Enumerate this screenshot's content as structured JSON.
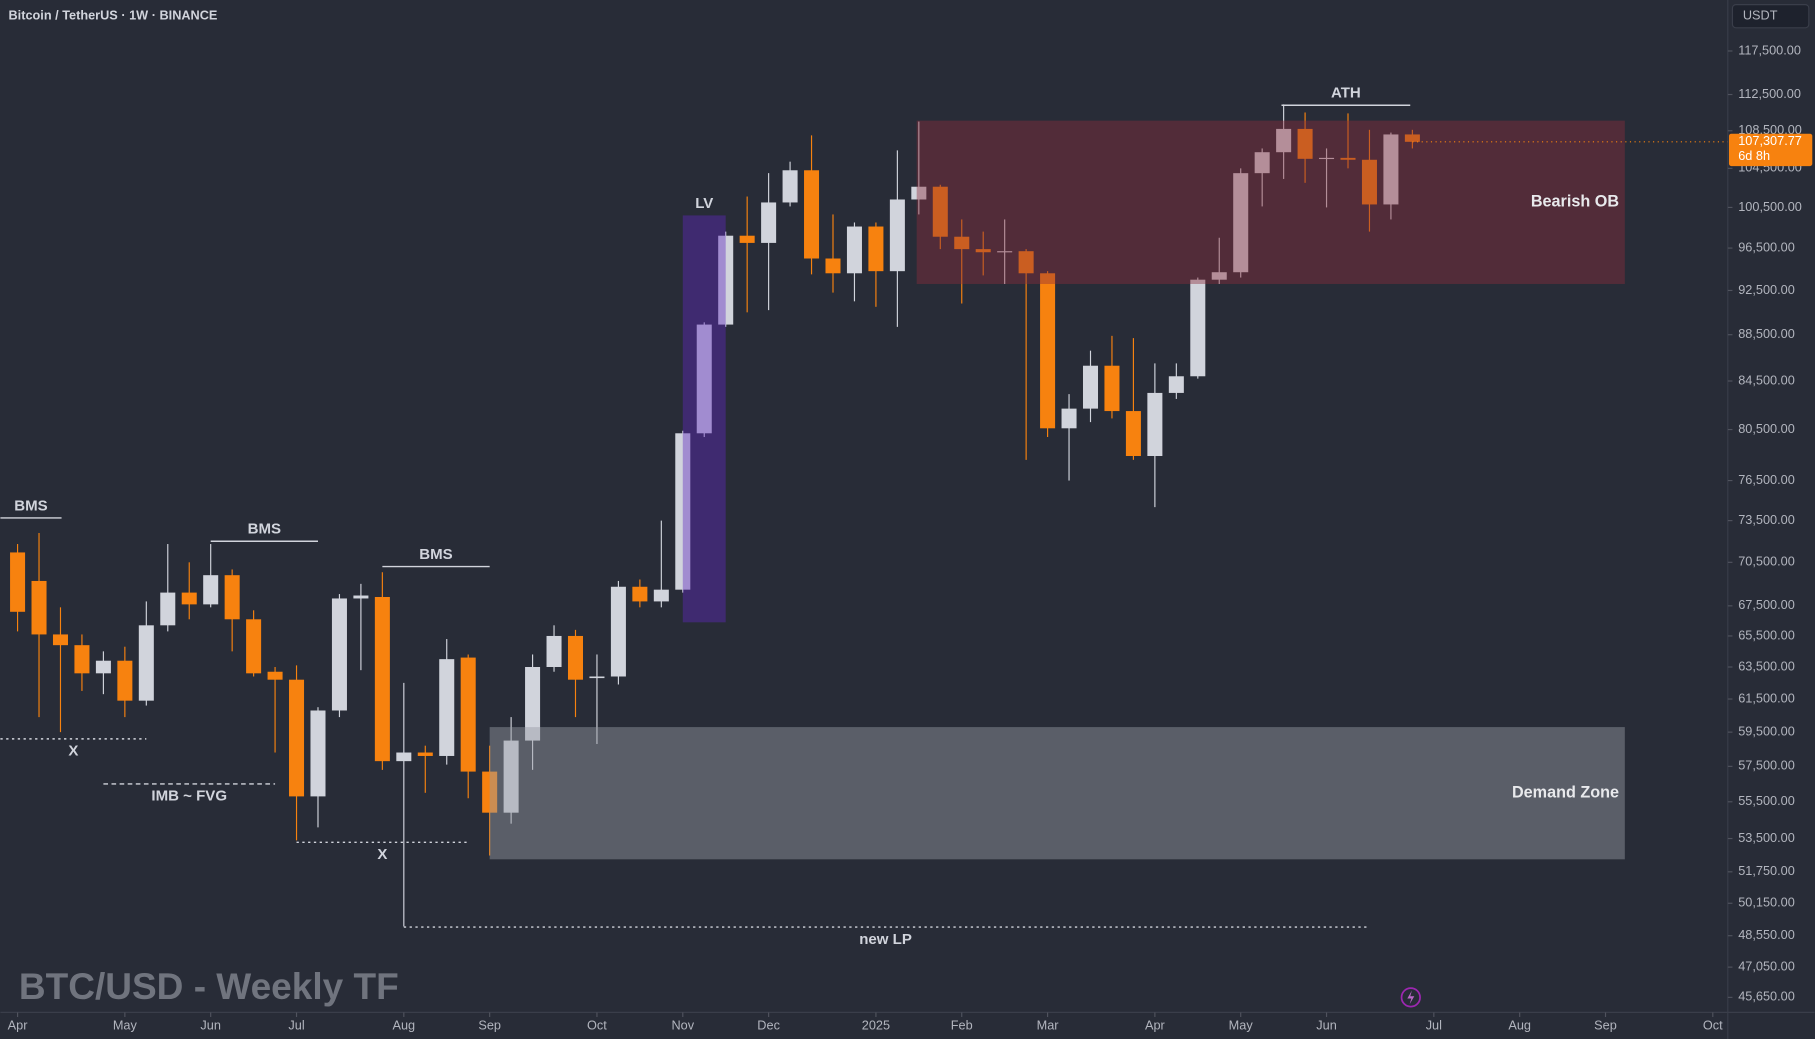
{
  "chart_data": {
    "type": "candlestick",
    "title": "Bitcoin / TetherUS · 1W · BINANCE",
    "watermark": "BTC/USD - Weekly TF",
    "currency": "USDT",
    "log": true,
    "up_color": "#d1d4dc",
    "down_color": "#f7820f",
    "ylim": [
      44970,
      123640
    ],
    "yticks": [
      {
        "value": 117500,
        "label": "117,500.00"
      },
      {
        "value": 112500,
        "label": "112,500.00"
      },
      {
        "value": 108500,
        "label": "108,500.00"
      },
      {
        "value": 104500,
        "label": "104,500.00"
      },
      {
        "value": 100500,
        "label": "100,500.00"
      },
      {
        "value": 96500,
        "label": "96,500.00"
      },
      {
        "value": 92500,
        "label": "92,500.00"
      },
      {
        "value": 88500,
        "label": "88,500.00"
      },
      {
        "value": 84500,
        "label": "84,500.00"
      },
      {
        "value": 80500,
        "label": "80,500.00"
      },
      {
        "value": 76500,
        "label": "76,500.00"
      },
      {
        "value": 73500,
        "label": "73,500.00"
      },
      {
        "value": 70500,
        "label": "70,500.00"
      },
      {
        "value": 67500,
        "label": "67,500.00"
      },
      {
        "value": 65500,
        "label": "65,500.00"
      },
      {
        "value": 63500,
        "label": "63,500.00"
      },
      {
        "value": 61500,
        "label": "61,500.00"
      },
      {
        "value": 59500,
        "label": "59,500.00"
      },
      {
        "value": 57500,
        "label": "57,500.00"
      },
      {
        "value": 55500,
        "label": "55,500.00"
      },
      {
        "value": 53500,
        "label": "53,500.00"
      },
      {
        "value": 51750,
        "label": "51,750.00"
      },
      {
        "value": 50150,
        "label": "50,150.00"
      },
      {
        "value": 48550,
        "label": "48,550.00"
      },
      {
        "value": 47050,
        "label": "47,050.00"
      },
      {
        "value": 45650,
        "label": "45,650.00"
      }
    ],
    "xlim": [
      -0.8,
      79.7
    ],
    "xticks": [
      {
        "value": 0,
        "label": "Apr"
      },
      {
        "value": 5,
        "label": "May"
      },
      {
        "value": 9,
        "label": "Jun"
      },
      {
        "value": 13,
        "label": "Jul"
      },
      {
        "value": 18,
        "label": "Aug"
      },
      {
        "value": 22,
        "label": "Sep"
      },
      {
        "value": 27,
        "label": "Oct"
      },
      {
        "value": 31,
        "label": "Nov"
      },
      {
        "value": 35,
        "label": "Dec"
      },
      {
        "value": 40,
        "label": "2025"
      },
      {
        "value": 44,
        "label": "Feb"
      },
      {
        "value": 48,
        "label": "Mar"
      },
      {
        "value": 53,
        "label": "Apr"
      },
      {
        "value": 57,
        "label": "May"
      },
      {
        "value": 61,
        "label": "Jun"
      },
      {
        "value": 66,
        "label": "Jul"
      },
      {
        "value": 70,
        "label": "Aug"
      },
      {
        "value": 74,
        "label": "Sep"
      },
      {
        "value": 79,
        "label": "Oct"
      }
    ],
    "open": [
      71200,
      69200,
      65600,
      64900,
      63100,
      63900,
      61400,
      66200,
      68400,
      67600,
      69600,
      66600,
      63200,
      62700,
      55800,
      60800,
      68000,
      68100,
      57800,
      58300,
      58100,
      64100,
      57200,
      54900,
      59000,
      63500,
      65500,
      62800,
      62900,
      68800,
      67800,
      68600,
      80200,
      89400,
      97700,
      97000,
      101000,
      104300,
      95500,
      94100,
      98600,
      94300,
      101300,
      102600,
      97600,
      96400,
      96100,
      96200,
      94100,
      80600,
      82200,
      85800,
      82000,
      78400,
      83500,
      84900,
      93500,
      94200,
      104000,
      106200,
      108700,
      105500,
      105600,
      105400,
      100800,
      108100
    ],
    "high": [
      71800,
      72600,
      67400,
      65600,
      64500,
      64800,
      67800,
      71800,
      70500,
      71800,
      70000,
      67200,
      63500,
      63600,
      61000,
      68300,
      69000,
      69800,
      62500,
      58700,
      65300,
      64300,
      58700,
      60400,
      64300,
      66200,
      65900,
      64300,
      69200,
      69300,
      73500,
      80400,
      89600,
      98100,
      101600,
      104000,
      105200,
      108000,
      99800,
      99000,
      99000,
      106400,
      109500,
      102800,
      99300,
      98100,
      99300,
      96400,
      94300,
      83400,
      87100,
      88400,
      88200,
      86000,
      86000,
      93700,
      97500,
      104500,
      106600,
      111400,
      110500,
      106600,
      110400,
      108600,
      108300,
      108600
    ],
    "low": [
      65800,
      60400,
      59500,
      62000,
      61800,
      60400,
      61100,
      65800,
      66600,
      67400,
      64500,
      62900,
      58300,
      53400,
      54100,
      60400,
      63300,
      57300,
      49000,
      56000,
      57600,
      55700,
      52600,
      54300,
      57300,
      63200,
      60400,
      58800,
      62400,
      67400,
      67400,
      68400,
      79900,
      89200,
      90500,
      90700,
      100600,
      94000,
      92300,
      91500,
      91000,
      89200,
      99800,
      96400,
      91300,
      93900,
      93100,
      78100,
      79900,
      76500,
      81100,
      81400,
      78100,
      74500,
      83000,
      84700,
      93100,
      93700,
      100600,
      103400,
      103000,
      100500,
      104500,
      98100,
      99300,
      106600
    ],
    "close": [
      67100,
      65600,
      64900,
      63100,
      63900,
      61400,
      66200,
      68400,
      67600,
      69600,
      66600,
      63100,
      62700,
      55800,
      60800,
      68000,
      68200,
      57800,
      58300,
      58100,
      64000,
      57200,
      54900,
      59000,
      63500,
      65500,
      62700,
      62900,
      68800,
      67800,
      68600,
      80200,
      89400,
      97700,
      97000,
      101000,
      104300,
      95500,
      94100,
      98600,
      94300,
      101300,
      102600,
      97600,
      96400,
      96100,
      96200,
      94100,
      80600,
      82200,
      85800,
      82000,
      78400,
      83500,
      84900,
      93500,
      94200,
      104000,
      106200,
      108700,
      105500,
      105600,
      105400,
      100800,
      108100,
      107307.77
    ],
    "last_price": {
      "value": 107307.77,
      "label": "107,307.77"
    },
    "countdown": "6d 8h",
    "zones": [
      {
        "label": "Bearish OB",
        "from": 41.9,
        "to": 74.9,
        "low": 93100,
        "high": 109600,
        "color": "rgba(140,45,60,0.42)"
      },
      {
        "label": "Demand Zone",
        "from": 22.0,
        "to": 74.9,
        "low": 52400,
        "high": 59800,
        "color": "rgba(150,155,165,0.45)"
      },
      {
        "label": "LV",
        "from": 31.0,
        "to": 33.0,
        "low": 66400,
        "high": 99700,
        "color": "rgba(95,40,190,0.42)"
      }
    ],
    "levels": [
      {
        "label": "BMS",
        "price": 73700,
        "from": -0.8,
        "to": 2.05,
        "style": "solid",
        "label_side": "above"
      },
      {
        "label": "BMS",
        "price": 72000,
        "from": 9.0,
        "to": 14.0,
        "style": "solid",
        "label_side": "above"
      },
      {
        "label": "BMS",
        "price": 70200,
        "from": 17.0,
        "to": 22.0,
        "style": "solid",
        "label_side": "above"
      },
      {
        "label": "ATH",
        "price": 111300,
        "from": 58.9,
        "to": 64.9,
        "style": "solid",
        "label_side": "above"
      },
      {
        "label": "new LP",
        "price": 48970,
        "from": 18.0,
        "to": 62.9,
        "style": "dotted",
        "label_side": "below"
      },
      {
        "label": "IMB ~ FVG",
        "price": 56500,
        "from": 4.0,
        "to": 12.0,
        "style": "dashed",
        "label_side": "below"
      },
      {
        "label": "X",
        "price": 59100,
        "from": -0.8,
        "to": 6.0,
        "style": "dotted",
        "label_side": "below"
      },
      {
        "label": "X",
        "price": 53300,
        "from": 13.0,
        "to": 21.0,
        "style": "dotted",
        "label_side": "below"
      }
    ]
  }
}
